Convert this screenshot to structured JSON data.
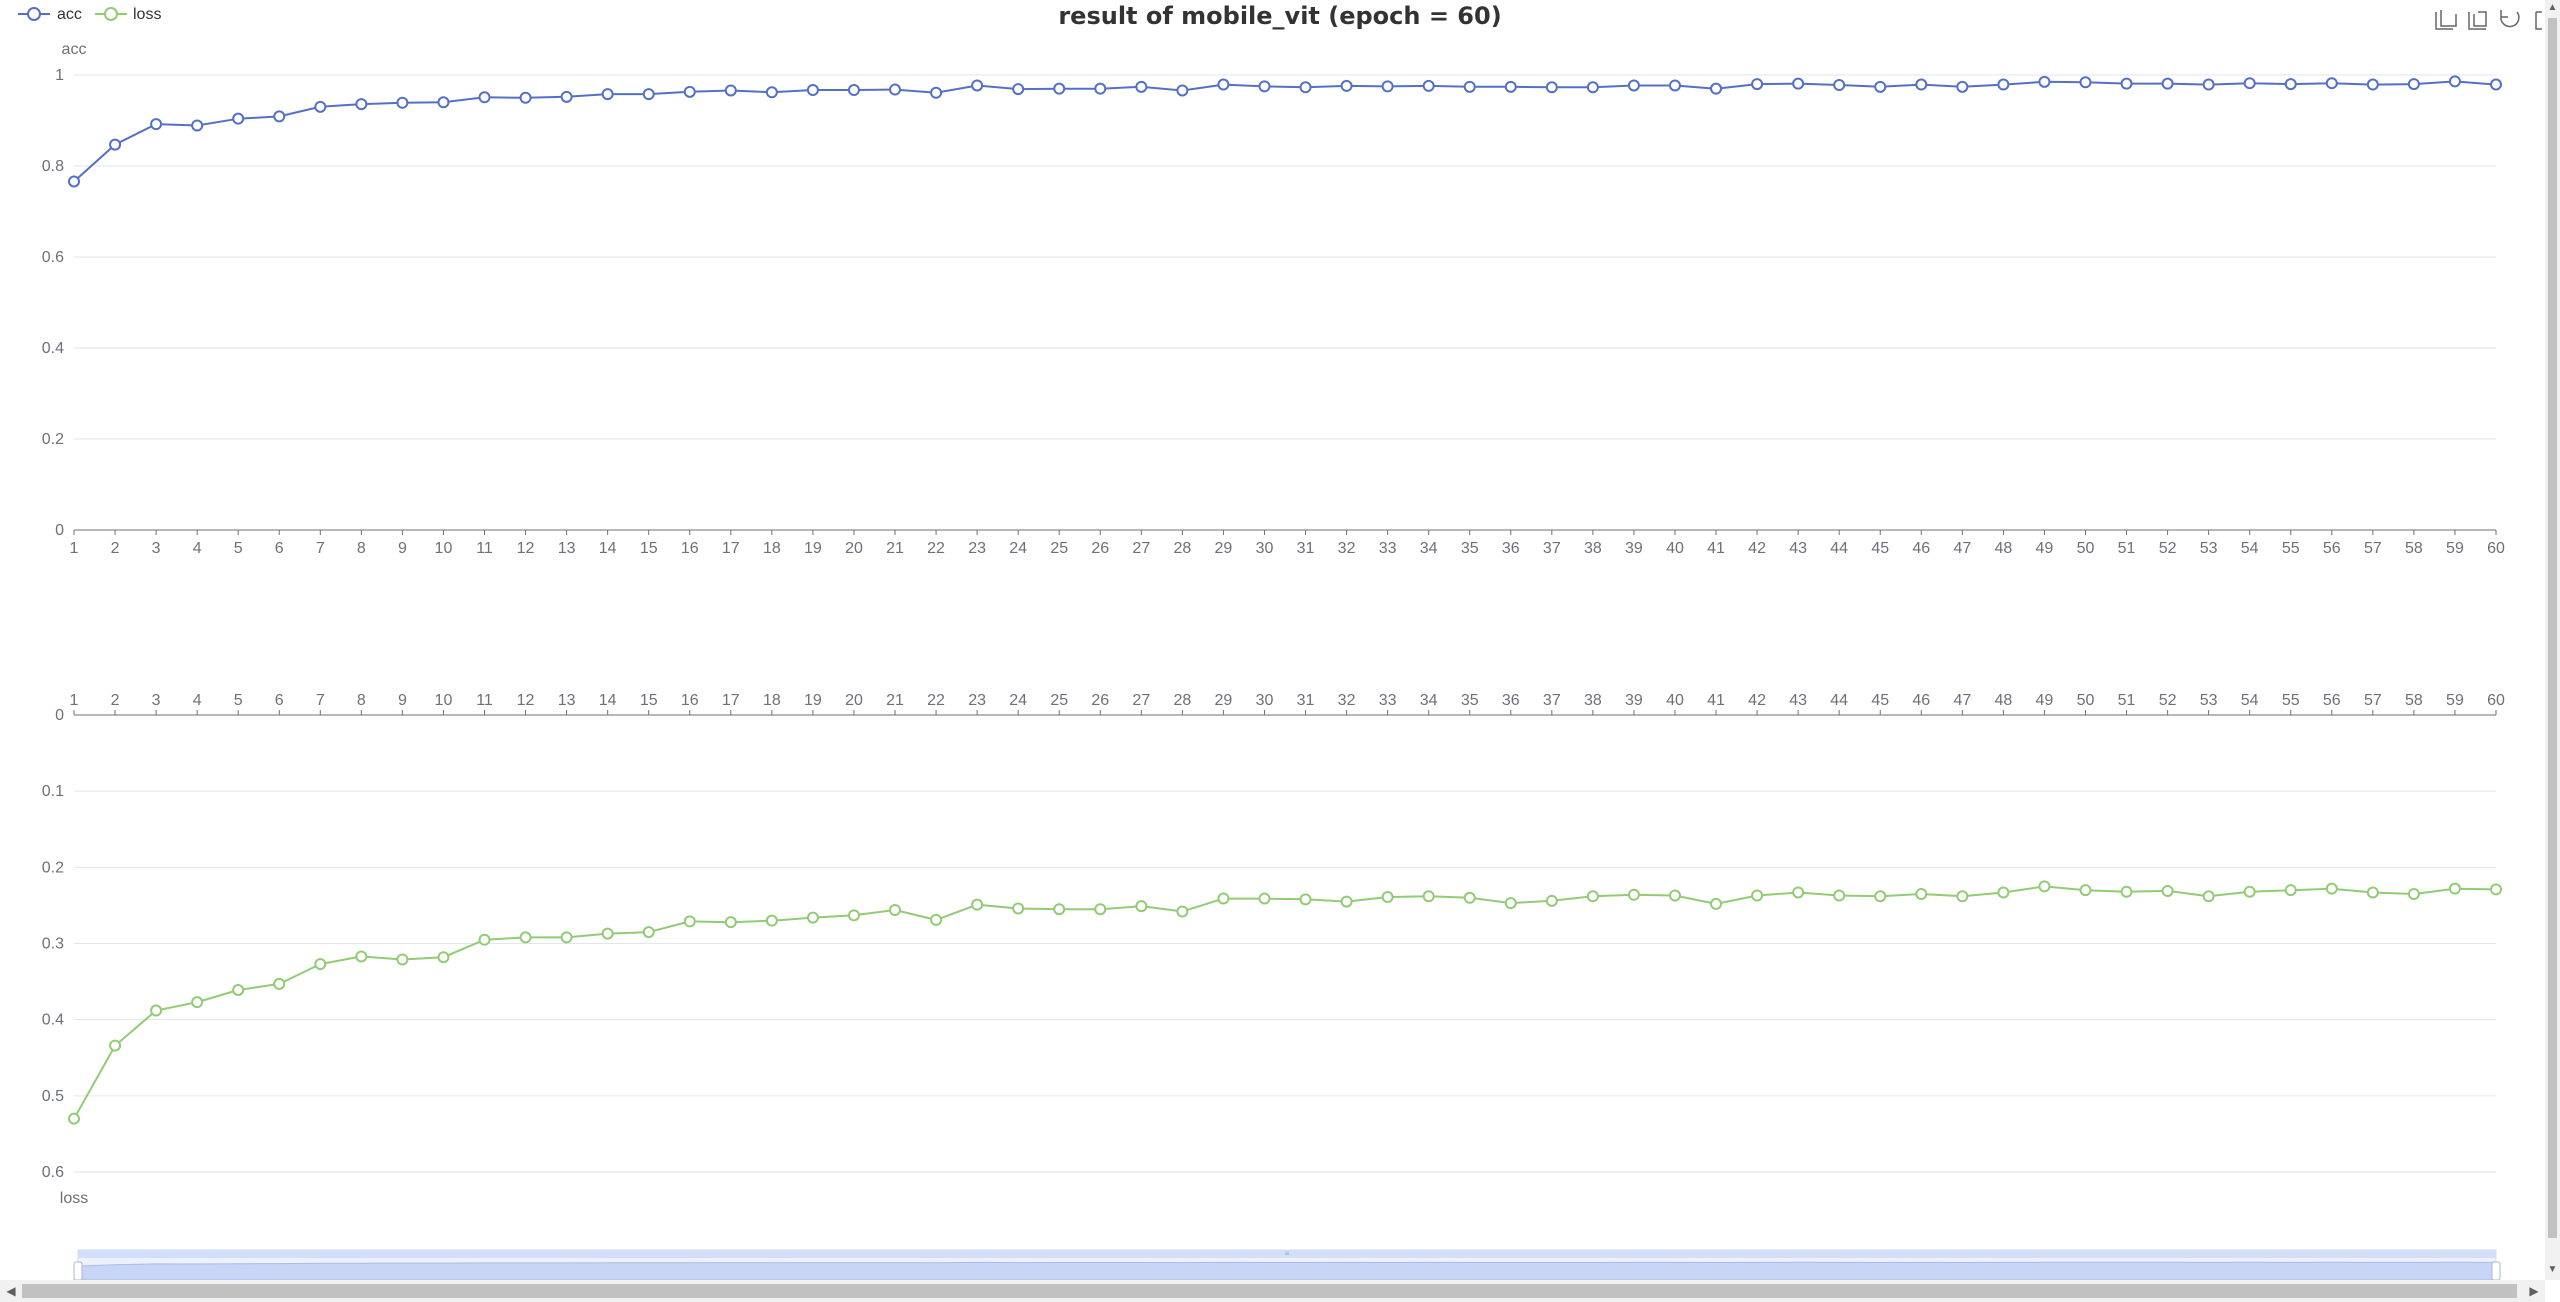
{
  "chart_data": {
    "type": "line",
    "title": "result of mobile_vit (epoch = 60)",
    "legend": [
      "acc",
      "loss"
    ],
    "legend_position": "top-left",
    "x": [
      "1",
      "2",
      "3",
      "4",
      "5",
      "6",
      "7",
      "8",
      "9",
      "10",
      "11",
      "12",
      "13",
      "14",
      "15",
      "16",
      "17",
      "18",
      "19",
      "20",
      "21",
      "22",
      "23",
      "24",
      "25",
      "26",
      "27",
      "28",
      "29",
      "30",
      "31",
      "32",
      "33",
      "34",
      "35",
      "36",
      "37",
      "38",
      "39",
      "40",
      "41",
      "42",
      "43",
      "44",
      "45",
      "46",
      "47",
      "48",
      "49",
      "50",
      "51",
      "52",
      "53",
      "54",
      "55",
      "56",
      "57",
      "58",
      "59",
      "60"
    ],
    "series": [
      {
        "name": "acc",
        "color": "#5470c6",
        "ylabel": "acc",
        "ylim": [
          0,
          1
        ],
        "yticks": [
          "0",
          "0.2",
          "0.4",
          "0.6",
          "0.8",
          "1"
        ],
        "y_inverse": false,
        "values": [
          0.766,
          0.847,
          0.892,
          0.889,
          0.904,
          0.909,
          0.93,
          0.936,
          0.939,
          0.94,
          0.951,
          0.95,
          0.952,
          0.958,
          0.958,
          0.963,
          0.966,
          0.962,
          0.967,
          0.967,
          0.968,
          0.961,
          0.977,
          0.969,
          0.97,
          0.97,
          0.974,
          0.966,
          0.979,
          0.975,
          0.973,
          0.976,
          0.975,
          0.976,
          0.974,
          0.974,
          0.973,
          0.973,
          0.977,
          0.977,
          0.97,
          0.98,
          0.981,
          0.978,
          0.974,
          0.979,
          0.974,
          0.979,
          0.985,
          0.984,
          0.981,
          0.981,
          0.979,
          0.982,
          0.98,
          0.982,
          0.979,
          0.98,
          0.986,
          0.979
        ]
      },
      {
        "name": "loss",
        "color": "#91cc75",
        "ylabel": "loss",
        "ylim": [
          0,
          0.6
        ],
        "yticks": [
          "0",
          "0.1",
          "0.2",
          "0.3",
          "0.4",
          "0.5",
          "0.6"
        ],
        "y_inverse": true,
        "values": [
          0.53,
          0.434,
          0.388,
          0.377,
          0.361,
          0.353,
          0.327,
          0.317,
          0.321,
          0.318,
          0.295,
          0.292,
          0.292,
          0.287,
          0.285,
          0.271,
          0.272,
          0.27,
          0.266,
          0.263,
          0.256,
          0.269,
          0.249,
          0.254,
          0.255,
          0.255,
          0.251,
          0.258,
          0.241,
          0.241,
          0.242,
          0.245,
          0.239,
          0.238,
          0.24,
          0.247,
          0.244,
          0.238,
          0.236,
          0.237,
          0.248,
          0.237,
          0.233,
          0.237,
          0.238,
          0.235,
          0.238,
          0.233,
          0.225,
          0.23,
          0.232,
          0.231,
          0.238,
          0.232,
          0.23,
          0.228,
          0.233,
          0.235,
          0.228,
          0.229
        ]
      }
    ],
    "grid": true,
    "datazoom_slider": true
  },
  "toolbox": {
    "icons": [
      "zoom-icon",
      "zoom-reset-icon",
      "restore-icon",
      "save-image-icon"
    ]
  }
}
